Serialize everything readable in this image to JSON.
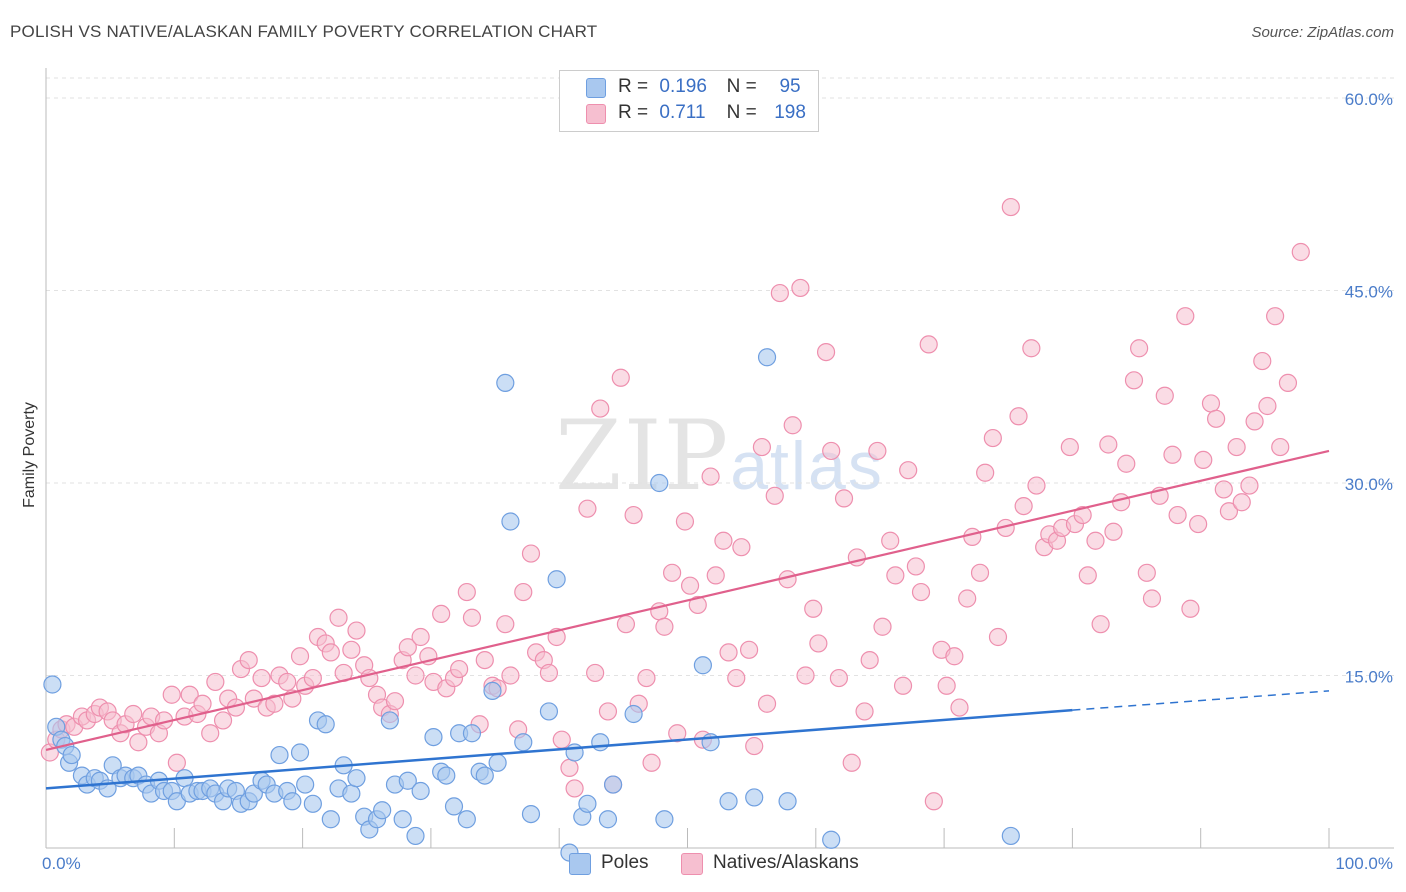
{
  "title": "POLISH VS NATIVE/ALASKAN FAMILY POVERTY CORRELATION CHART",
  "source": "Source: ZipAtlas.com",
  "watermark": {
    "zip": "ZIP",
    "atlas": "atlas"
  },
  "colors": {
    "poles_fill": "#a9c8ef",
    "poles_stroke": "#6f9fe0",
    "poles_line": "#2f74d0",
    "natives_fill": "#f6bfd0",
    "natives_stroke": "#ee8fae",
    "natives_line": "#e0608c",
    "tick_label": "#4a7cc9",
    "grid": "#e2e2e2"
  },
  "legend": {
    "r_label": "R =",
    "n_label": "N =",
    "poles": {
      "r": "0.196",
      "n": "95"
    },
    "natives": {
      "r": "0.711",
      "n": "198"
    }
  },
  "bottom_legend": {
    "poles": "Poles",
    "natives": "Natives/Alaskans"
  },
  "chart_data": {
    "type": "scatter",
    "title": "POLISH VS NATIVE/ALASKAN FAMILY POVERTY CORRELATION CHART",
    "xlabel": "",
    "ylabel": "Family Poverty",
    "xlim": [
      0,
      100
    ],
    "ylim": [
      0,
      60
    ],
    "y_ticks": [
      15,
      30,
      45,
      60
    ],
    "y_tick_labels": [
      "15.0%",
      "30.0%",
      "45.0%",
      "60.0%"
    ],
    "x_tick_labels": [
      "0.0%",
      "100.0%"
    ],
    "grid": true,
    "series": [
      {
        "name": "Poles",
        "trend": {
          "x0": 0,
          "y0": 6.2,
          "x1": 80,
          "y1": 12.3,
          "dashed_to_x": 100,
          "dashed_to_y": 13.8
        },
        "points": [
          [
            0.5,
            14.3
          ],
          [
            0.8,
            11.0
          ],
          [
            1.2,
            10.0
          ],
          [
            1.5,
            9.5
          ],
          [
            1.8,
            8.2
          ],
          [
            2,
            8.8
          ],
          [
            2.8,
            7.2
          ],
          [
            3.2,
            6.5
          ],
          [
            3.8,
            7.0
          ],
          [
            4.2,
            6.8
          ],
          [
            4.8,
            6.2
          ],
          [
            5.2,
            8.0
          ],
          [
            5.8,
            7.0
          ],
          [
            6.2,
            7.2
          ],
          [
            6.8,
            7.0
          ],
          [
            7.2,
            7.2
          ],
          [
            7.8,
            6.5
          ],
          [
            8.2,
            5.8
          ],
          [
            8.8,
            6.8
          ],
          [
            9.2,
            6.0
          ],
          [
            9.8,
            6.0
          ],
          [
            10.2,
            5.2
          ],
          [
            10.8,
            7.0
          ],
          [
            11.2,
            5.8
          ],
          [
            11.8,
            6.0
          ],
          [
            12.2,
            6.0
          ],
          [
            12.8,
            6.2
          ],
          [
            13.2,
            5.8
          ],
          [
            13.8,
            5.2
          ],
          [
            14.2,
            6.2
          ],
          [
            14.8,
            6.0
          ],
          [
            15.2,
            5.0
          ],
          [
            15.8,
            5.2
          ],
          [
            16.2,
            5.8
          ],
          [
            16.8,
            6.8
          ],
          [
            17.2,
            6.5
          ],
          [
            17.8,
            5.8
          ],
          [
            18.2,
            8.8
          ],
          [
            18.8,
            6.0
          ],
          [
            19.2,
            5.2
          ],
          [
            19.8,
            9.0
          ],
          [
            20.2,
            6.5
          ],
          [
            20.8,
            5.0
          ],
          [
            21.2,
            11.5
          ],
          [
            21.8,
            11.2
          ],
          [
            22.2,
            3.8
          ],
          [
            22.8,
            6.2
          ],
          [
            23.2,
            8.0
          ],
          [
            23.8,
            5.8
          ],
          [
            24.2,
            7.0
          ],
          [
            24.8,
            4.0
          ],
          [
            25.2,
            3.0
          ],
          [
            25.8,
            3.8
          ],
          [
            26.2,
            4.5
          ],
          [
            26.8,
            11.5
          ],
          [
            27.2,
            6.5
          ],
          [
            27.8,
            3.8
          ],
          [
            28.2,
            6.8
          ],
          [
            28.8,
            2.5
          ],
          [
            29.2,
            6.0
          ],
          [
            30.2,
            10.2
          ],
          [
            30.8,
            7.5
          ],
          [
            31.2,
            7.2
          ],
          [
            31.8,
            4.8
          ],
          [
            32.2,
            10.5
          ],
          [
            32.8,
            3.8
          ],
          [
            33.2,
            10.5
          ],
          [
            33.8,
            7.5
          ],
          [
            34.2,
            7.2
          ],
          [
            34.8,
            13.8
          ],
          [
            35.2,
            8.2
          ],
          [
            35.8,
            37.8
          ],
          [
            36.2,
            27.0
          ],
          [
            37.2,
            9.8
          ],
          [
            37.8,
            4.2
          ],
          [
            39.2,
            12.2
          ],
          [
            39.8,
            22.5
          ],
          [
            40.8,
            1.2
          ],
          [
            41.2,
            9.0
          ],
          [
            41.8,
            4.0
          ],
          [
            42.2,
            5.0
          ],
          [
            43.2,
            9.8
          ],
          [
            43.8,
            3.8
          ],
          [
            44.2,
            6.5
          ],
          [
            45.8,
            12.0
          ],
          [
            47.8,
            30.0
          ],
          [
            48.2,
            3.8
          ],
          [
            51.2,
            15.8
          ],
          [
            51.8,
            9.8
          ],
          [
            53.2,
            5.2
          ],
          [
            55.2,
            5.5
          ],
          [
            56.2,
            39.8
          ],
          [
            57.8,
            5.2
          ],
          [
            61.2,
            2.2
          ],
          [
            75.2,
            2.5
          ]
        ]
      },
      {
        "name": "Natives/Alaskans",
        "trend": {
          "x0": 0,
          "y0": 9.2,
          "x1": 100,
          "y1": 32.5
        },
        "points": [
          [
            0.3,
            9.0
          ],
          [
            0.8,
            10.0
          ],
          [
            1.2,
            10.8
          ],
          [
            1.6,
            11.2
          ],
          [
            2.2,
            11.0
          ],
          [
            2.8,
            11.8
          ],
          [
            3.2,
            11.5
          ],
          [
            3.8,
            12.0
          ],
          [
            4.2,
            12.5
          ],
          [
            4.8,
            12.2
          ],
          [
            5.2,
            11.5
          ],
          [
            5.8,
            10.5
          ],
          [
            6.2,
            11.2
          ],
          [
            6.8,
            12.0
          ],
          [
            7.2,
            9.8
          ],
          [
            7.8,
            11.0
          ],
          [
            8.2,
            11.8
          ],
          [
            8.8,
            10.5
          ],
          [
            9.2,
            11.5
          ],
          [
            9.8,
            13.5
          ],
          [
            10.2,
            8.2
          ],
          [
            10.8,
            11.8
          ],
          [
            11.2,
            13.5
          ],
          [
            11.8,
            12.0
          ],
          [
            12.2,
            12.8
          ],
          [
            12.8,
            10.5
          ],
          [
            13.2,
            14.5
          ],
          [
            13.8,
            11.5
          ],
          [
            14.2,
            13.2
          ],
          [
            14.8,
            12.5
          ],
          [
            15.2,
            15.5
          ],
          [
            15.8,
            16.2
          ],
          [
            16.2,
            13.2
          ],
          [
            16.8,
            14.8
          ],
          [
            17.2,
            12.5
          ],
          [
            17.8,
            12.8
          ],
          [
            18.2,
            15.0
          ],
          [
            18.8,
            14.5
          ],
          [
            19.2,
            13.2
          ],
          [
            19.8,
            16.5
          ],
          [
            20.2,
            14.2
          ],
          [
            20.8,
            14.8
          ],
          [
            21.2,
            18.0
          ],
          [
            21.8,
            17.5
          ],
          [
            22.2,
            16.8
          ],
          [
            22.8,
            19.5
          ],
          [
            23.2,
            15.2
          ],
          [
            23.8,
            17.0
          ],
          [
            24.2,
            18.5
          ],
          [
            24.8,
            15.8
          ],
          [
            25.2,
            14.8
          ],
          [
            25.8,
            13.5
          ],
          [
            26.2,
            12.5
          ],
          [
            26.8,
            12.0
          ],
          [
            27.2,
            13.0
          ],
          [
            27.8,
            16.2
          ],
          [
            28.2,
            17.2
          ],
          [
            28.8,
            15.0
          ],
          [
            29.2,
            18.0
          ],
          [
            29.8,
            16.5
          ],
          [
            30.2,
            14.5
          ],
          [
            30.8,
            19.8
          ],
          [
            31.2,
            14.0
          ],
          [
            31.8,
            14.8
          ],
          [
            32.2,
            15.5
          ],
          [
            32.8,
            21.5
          ],
          [
            33.2,
            19.5
          ],
          [
            33.8,
            11.2
          ],
          [
            34.2,
            16.2
          ],
          [
            34.8,
            14.2
          ],
          [
            35.2,
            14.0
          ],
          [
            35.8,
            19.0
          ],
          [
            36.2,
            15.0
          ],
          [
            36.8,
            10.8
          ],
          [
            37.2,
            21.5
          ],
          [
            37.8,
            24.5
          ],
          [
            38.2,
            16.8
          ],
          [
            38.8,
            16.2
          ],
          [
            39.2,
            15.2
          ],
          [
            39.8,
            18.0
          ],
          [
            40.2,
            10.0
          ],
          [
            40.8,
            7.8
          ],
          [
            41.2,
            6.2
          ],
          [
            42.2,
            28.0
          ],
          [
            42.8,
            15.2
          ],
          [
            43.2,
            35.8
          ],
          [
            43.8,
            12.2
          ],
          [
            44.2,
            6.5
          ],
          [
            44.8,
            38.2
          ],
          [
            45.2,
            19.0
          ],
          [
            45.8,
            27.5
          ],
          [
            46.2,
            12.8
          ],
          [
            46.8,
            14.8
          ],
          [
            47.2,
            8.2
          ],
          [
            47.8,
            20.0
          ],
          [
            48.2,
            18.8
          ],
          [
            48.8,
            23.0
          ],
          [
            49.2,
            10.5
          ],
          [
            49.8,
            27.0
          ],
          [
            50.2,
            22.0
          ],
          [
            50.8,
            20.5
          ],
          [
            51.2,
            10.0
          ],
          [
            51.8,
            30.5
          ],
          [
            52.2,
            22.8
          ],
          [
            52.8,
            25.5
          ],
          [
            53.2,
            16.8
          ],
          [
            53.8,
            14.8
          ],
          [
            54.2,
            25.0
          ],
          [
            54.8,
            17.0
          ],
          [
            55.2,
            9.5
          ],
          [
            55.8,
            32.8
          ],
          [
            56.2,
            12.8
          ],
          [
            56.8,
            29.0
          ],
          [
            57.2,
            44.8
          ],
          [
            57.8,
            22.5
          ],
          [
            58.2,
            34.5
          ],
          [
            58.8,
            45.2
          ],
          [
            59.2,
            15.0
          ],
          [
            59.8,
            20.2
          ],
          [
            60.2,
            17.5
          ],
          [
            60.8,
            40.2
          ],
          [
            61.2,
            32.5
          ],
          [
            61.8,
            14.8
          ],
          [
            62.2,
            28.8
          ],
          [
            62.8,
            8.2
          ],
          [
            63.2,
            24.2
          ],
          [
            63.8,
            12.2
          ],
          [
            64.2,
            16.2
          ],
          [
            64.8,
            32.5
          ],
          [
            65.2,
            18.8
          ],
          [
            65.8,
            25.5
          ],
          [
            66.2,
            22.8
          ],
          [
            66.8,
            14.2
          ],
          [
            67.2,
            31.0
          ],
          [
            67.8,
            23.5
          ],
          [
            68.2,
            21.5
          ],
          [
            68.8,
            40.8
          ],
          [
            69.2,
            5.2
          ],
          [
            69.8,
            17.0
          ],
          [
            70.2,
            14.2
          ],
          [
            70.8,
            16.5
          ],
          [
            71.2,
            12.5
          ],
          [
            71.8,
            21.0
          ],
          [
            72.2,
            25.8
          ],
          [
            72.8,
            23.0
          ],
          [
            73.2,
            30.8
          ],
          [
            73.8,
            33.5
          ],
          [
            74.2,
            18.0
          ],
          [
            74.8,
            26.5
          ],
          [
            75.2,
            51.5
          ],
          [
            75.8,
            35.2
          ],
          [
            76.2,
            28.2
          ],
          [
            76.8,
            40.5
          ],
          [
            77.2,
            29.8
          ],
          [
            77.8,
            25.0
          ],
          [
            78.2,
            26.0
          ],
          [
            78.8,
            25.5
          ],
          [
            79.2,
            26.5
          ],
          [
            79.8,
            32.8
          ],
          [
            80.2,
            26.8
          ],
          [
            80.8,
            27.5
          ],
          [
            81.2,
            22.8
          ],
          [
            81.8,
            25.5
          ],
          [
            82.2,
            19.0
          ],
          [
            82.8,
            33.0
          ],
          [
            83.2,
            26.2
          ],
          [
            83.8,
            28.5
          ],
          [
            84.2,
            31.5
          ],
          [
            84.8,
            38.0
          ],
          [
            85.2,
            40.5
          ],
          [
            85.8,
            23.0
          ],
          [
            86.2,
            21.0
          ],
          [
            86.8,
            29.0
          ],
          [
            87.2,
            36.8
          ],
          [
            87.8,
            32.2
          ],
          [
            88.2,
            27.5
          ],
          [
            88.8,
            43.0
          ],
          [
            89.2,
            20.2
          ],
          [
            89.8,
            26.8
          ],
          [
            90.2,
            31.8
          ],
          [
            90.8,
            36.2
          ],
          [
            91.2,
            35.0
          ],
          [
            91.8,
            29.5
          ],
          [
            92.2,
            27.8
          ],
          [
            92.8,
            32.8
          ],
          [
            93.2,
            28.5
          ],
          [
            93.8,
            29.8
          ],
          [
            94.2,
            34.8
          ],
          [
            94.8,
            39.5
          ],
          [
            95.2,
            36.0
          ],
          [
            95.8,
            43.0
          ],
          [
            96.2,
            32.8
          ],
          [
            96.8,
            37.8
          ],
          [
            97.8,
            48.0
          ]
        ]
      }
    ]
  }
}
